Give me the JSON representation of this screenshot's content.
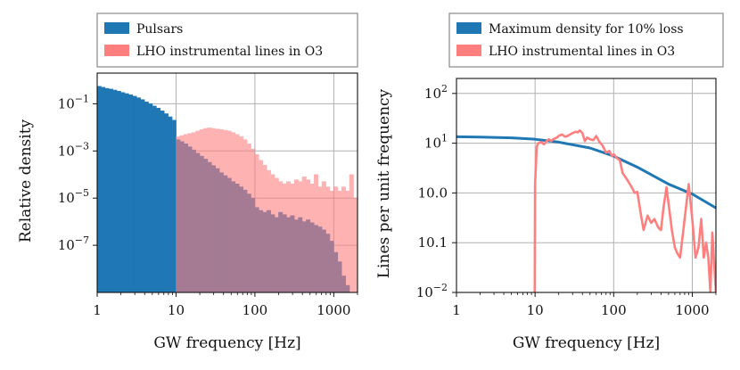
{
  "chart_data": [
    {
      "type": "bar",
      "xscale": "log",
      "yscale": "log",
      "xlabel": "GW frequency [Hz]",
      "ylabel": "Relative density",
      "xlim": [
        1,
        2000
      ],
      "ylim": [
        1e-09,
        2
      ],
      "x_ticks": [
        {
          "value": 1,
          "label": "1"
        },
        {
          "value": 10,
          "label": "10"
        },
        {
          "value": 100,
          "label": "100"
        },
        {
          "value": 1000,
          "label": "1000"
        }
      ],
      "y_ticks": [
        {
          "value": 0.1,
          "base": "10",
          "exp": "−1"
        },
        {
          "value": 0.001,
          "base": "10",
          "exp": "−3"
        },
        {
          "value": 1e-05,
          "base": "10",
          "exp": "−5"
        },
        {
          "value": 1e-07,
          "base": "10",
          "exp": "−7"
        }
      ],
      "grid": true,
      "legend_position": "above",
      "series": [
        {
          "name": "Pulsars",
          "color": "#1f77b4",
          "bins_per_decade": 20,
          "x_start": 1,
          "values": [
            0.55,
            0.5,
            0.45,
            0.42,
            0.38,
            0.34,
            0.3,
            0.27,
            0.24,
            0.21,
            0.18,
            0.15,
            0.12,
            0.1,
            0.08,
            0.065,
            0.05,
            0.038,
            0.028,
            0.02,
            0.003,
            0.0025,
            0.002,
            0.0015,
            0.0011,
            0.0008,
            0.0006,
            0.00045,
            0.00033,
            0.00024,
            0.00018,
            0.00012,
            9e-05,
            7e-05,
            5e-05,
            4e-05,
            3e-05,
            2.2e-05,
            1.5e-05,
            1e-05,
            4e-06,
            3e-06,
            2.5e-06,
            3e-06,
            2e-06,
            1.5e-06,
            2.5e-06,
            2e-06,
            1.5e-06,
            1.8e-06,
            1.2e-06,
            1.5e-06,
            1e-06,
            1.2e-06,
            9e-07,
            7e-07,
            6e-07,
            4.5e-07,
            3e-07,
            1.5e-07,
            5e-08,
            2e-08,
            5e-09,
            2e-09,
            1e-09,
            1e-09
          ]
        },
        {
          "name": "LHO instrumental lines in O3",
          "color": "#ff7f7f",
          "bins_per_decade": 20,
          "x_start": 10,
          "values": [
            0.004,
            0.0045,
            0.005,
            0.0055,
            0.006,
            0.007,
            0.008,
            0.009,
            0.0095,
            0.009,
            0.0085,
            0.008,
            0.0075,
            0.007,
            0.006,
            0.005,
            0.004,
            0.003,
            0.002,
            0.0012,
            0.0007,
            0.0004,
            0.00025,
            0.00015,
            0.0001,
            7e-05,
            5e-05,
            4e-05,
            5e-05,
            4e-05,
            6e-05,
            5e-05,
            8e-05,
            6e-05,
            4e-05,
            0.0001,
            3e-05,
            5e-05,
            3e-05,
            2e-05,
            3e-05,
            2e-05,
            3e-05,
            2e-05,
            0.0001,
            1e-05
          ]
        }
      ]
    },
    {
      "type": "line",
      "xscale": "log",
      "yscale": "log",
      "xlabel": "GW frequency [Hz]",
      "ylabel": "Lines per unit frequency",
      "xlim": [
        1,
        2000
      ],
      "ylim": [
        0.01,
        200
      ],
      "x_ticks": [
        {
          "value": 1,
          "label": "1"
        },
        {
          "value": 10,
          "label": "10"
        },
        {
          "value": 100,
          "label": "100"
        },
        {
          "value": 1000,
          "label": "1000"
        }
      ],
      "y_ticks": [
        {
          "value": 100,
          "base": "10",
          "exp": "2"
        },
        {
          "value": 10,
          "base": "10",
          "exp": "1"
        },
        {
          "value": 1,
          "label": "10.0"
        },
        {
          "value": 0.1,
          "label": "10.1"
        },
        {
          "value": 0.01,
          "base": "10",
          "exp": "−2"
        }
      ],
      "grid": true,
      "legend_position": "above",
      "series": [
        {
          "name": "Maximum density for 10% loss",
          "color": "#1f77b4",
          "x": [
            1,
            2,
            5,
            10,
            20,
            50,
            100,
            200,
            500,
            1000,
            2000
          ],
          "y": [
            13.5,
            13.3,
            12.8,
            12,
            10.5,
            8,
            5.5,
            3.3,
            1.5,
            0.95,
            0.5
          ]
        },
        {
          "name": "LHO instrumental lines in O3",
          "color": "#ff7f7f",
          "x": [
            9.9,
            10,
            10.5,
            11,
            12,
            13,
            14,
            15,
            16,
            17,
            18,
            19,
            20,
            22,
            24,
            26,
            28,
            30,
            33,
            35,
            37,
            40,
            43,
            46,
            50,
            55,
            60,
            66,
            72,
            80,
            88,
            95,
            100,
            110,
            120,
            130,
            150,
            170,
            185,
            200,
            220,
            240,
            270,
            300,
            330,
            370,
            400,
            430,
            470,
            500,
            550,
            600,
            650,
            700,
            800,
            900,
            1000,
            1100,
            1200,
            1300,
            1400,
            1500,
            1600,
            1700,
            1800,
            2000
          ],
          "y": [
            0.01,
            1.5,
            8.5,
            10,
            10.5,
            9.5,
            11,
            12,
            11,
            12,
            12.5,
            13,
            14,
            15,
            13.5,
            14,
            15,
            16,
            17,
            16.5,
            18,
            16,
            11,
            13,
            12,
            11.5,
            14,
            10.5,
            9,
            6.5,
            7,
            5.5,
            6,
            5,
            4.5,
            2.5,
            1.8,
            1.3,
            1,
            1.05,
            0.4,
            0.18,
            0.35,
            0.25,
            0.3,
            0.2,
            0.18,
            0.5,
            1.3,
            0.6,
            0.18,
            0.08,
            0.06,
            0.05,
            0.3,
            1.5,
            0.3,
            0.05,
            0.08,
            0.3,
            0.05,
            0.1,
            0.05,
            0.01,
            0.16,
            0.01
          ]
        }
      ]
    }
  ]
}
